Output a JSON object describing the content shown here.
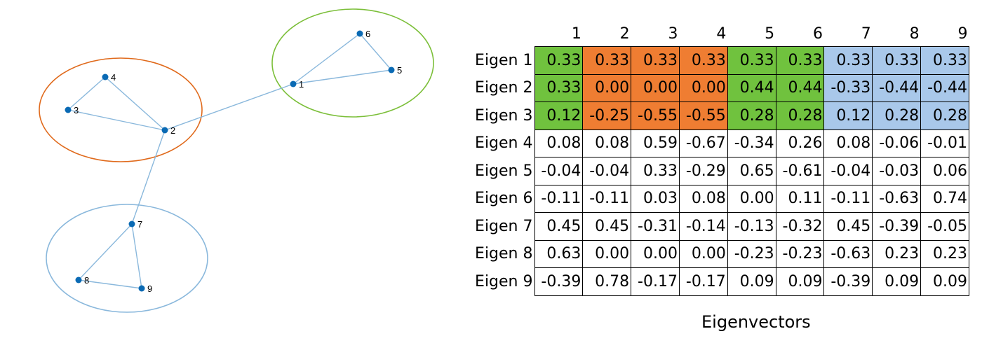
{
  "graph": {
    "nodes": [
      "1",
      "2",
      "3",
      "4",
      "5",
      "6",
      "7",
      "8",
      "9"
    ],
    "edges": [
      [
        "1",
        "5"
      ],
      [
        "1",
        "6"
      ],
      [
        "5",
        "6"
      ],
      [
        "1",
        "2"
      ],
      [
        "2",
        "3"
      ],
      [
        "3",
        "4"
      ],
      [
        "4",
        "2"
      ],
      [
        "2",
        "7"
      ],
      [
        "7",
        "8"
      ],
      [
        "7",
        "9"
      ],
      [
        "8",
        "9"
      ]
    ],
    "clusters": [
      {
        "nodes": [
          "1",
          "5",
          "6"
        ],
        "color": "#7cbf3a"
      },
      {
        "nodes": [
          "2",
          "3",
          "4"
        ],
        "color": "#e06a1c"
      },
      {
        "nodes": [
          "7",
          "8",
          "9"
        ],
        "color": "#8ab8dc"
      }
    ],
    "node_color": "#0a6ab4",
    "edge_color": "#8ab8dc"
  },
  "matrix": {
    "col_headers": [
      "1",
      "2",
      "3",
      "4",
      "5",
      "6",
      "7",
      "8",
      "9"
    ],
    "rows": [
      {
        "label": "Eigen 1",
        "values": [
          "0.33",
          "0.33",
          "0.33",
          "0.33",
          "0.33",
          "0.33",
          "0.33",
          "0.33",
          "0.33"
        ]
      },
      {
        "label": "Eigen 2",
        "values": [
          "0.33",
          "0.00",
          "0.00",
          "0.00",
          "0.44",
          "0.44",
          "-0.33",
          "-0.44",
          "-0.44"
        ]
      },
      {
        "label": "Eigen 3",
        "values": [
          "0.12",
          "-0.25",
          "-0.55",
          "-0.55",
          "0.28",
          "0.28",
          "0.12",
          "0.28",
          "0.28"
        ]
      },
      {
        "label": "Eigen 4",
        "values": [
          "0.08",
          "0.08",
          "0.59",
          "-0.67",
          "-0.34",
          "0.26",
          "0.08",
          "-0.06",
          "-0.01"
        ]
      },
      {
        "label": "Eigen 5",
        "values": [
          "-0.04",
          "-0.04",
          "0.33",
          "-0.29",
          "0.65",
          "-0.61",
          "-0.04",
          "-0.03",
          "0.06"
        ]
      },
      {
        "label": "Eigen 6",
        "values": [
          "-0.11",
          "-0.11",
          "0.03",
          "0.08",
          "0.00",
          "0.11",
          "-0.11",
          "-0.63",
          "0.74"
        ]
      },
      {
        "label": "Eigen 7",
        "values": [
          "0.45",
          "0.45",
          "-0.31",
          "-0.14",
          "-0.13",
          "-0.32",
          "0.45",
          "-0.39",
          "-0.05"
        ]
      },
      {
        "label": "Eigen 8",
        "values": [
          "0.63",
          "0.00",
          "0.00",
          "0.00",
          "-0.23",
          "-0.23",
          "-0.63",
          "0.23",
          "0.23"
        ]
      },
      {
        "label": "Eigen 9",
        "values": [
          "-0.39",
          "0.78",
          "-0.17",
          "-0.17",
          "0.09",
          "0.09",
          "-0.39",
          "0.09",
          "0.09"
        ]
      }
    ],
    "highlight_rows": 3,
    "column_groups": [
      "green",
      "orange",
      "orange",
      "orange",
      "green",
      "green",
      "blue",
      "blue",
      "blue"
    ],
    "colors": {
      "green": "#70c23e",
      "orange": "#ef7d32",
      "blue": "#a9c8ea"
    }
  },
  "caption": "Eigenvectors"
}
